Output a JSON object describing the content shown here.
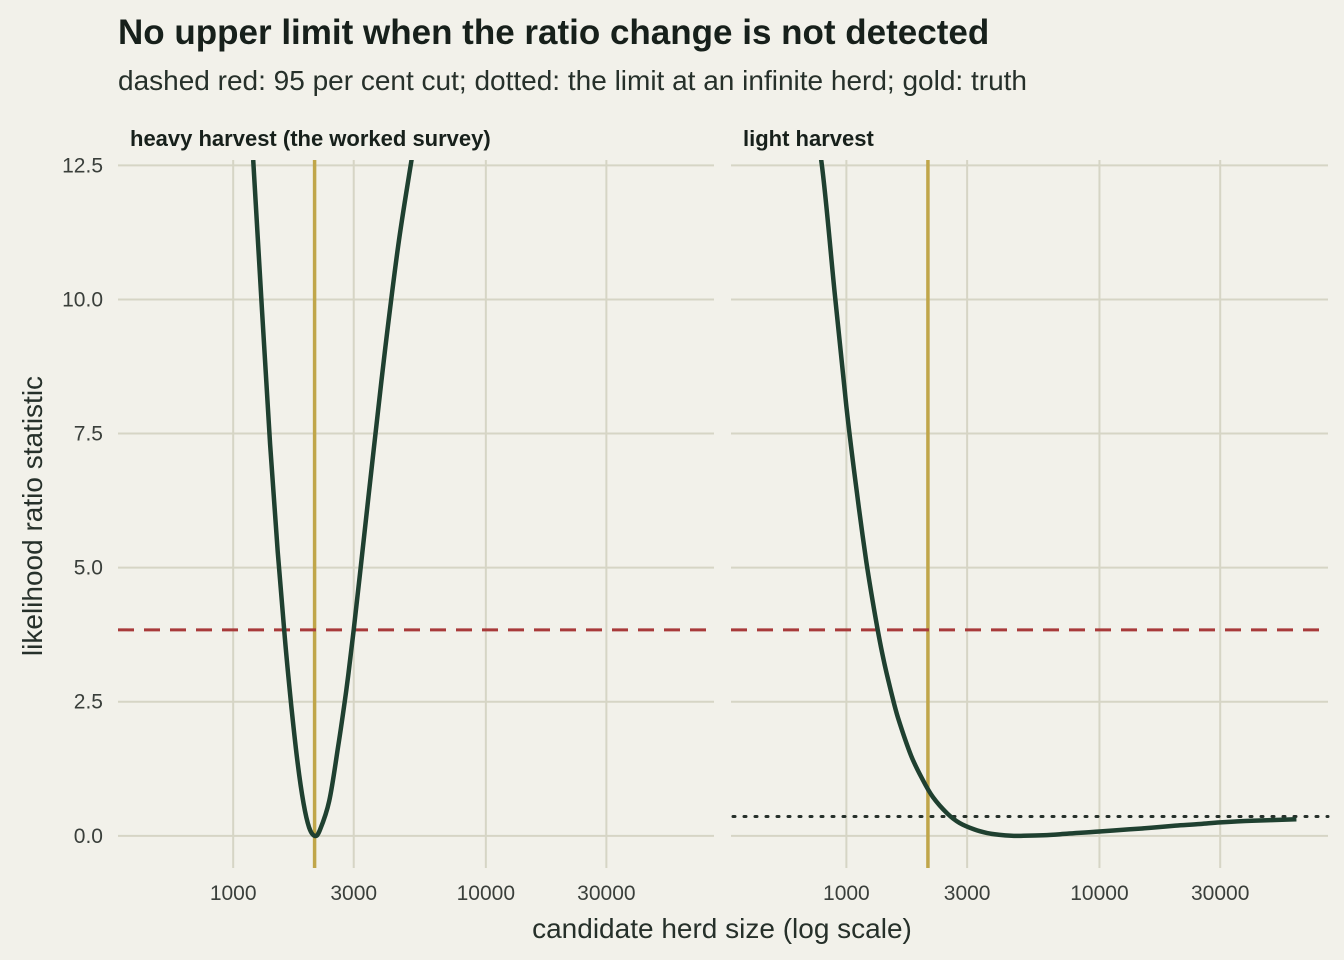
{
  "title": "No upper limit when the ratio change is not detected",
  "subtitle": "dashed red: 95 per cent cut; dotted: the limit at an infinite herd; gold: truth",
  "chart_data": {
    "type": "line",
    "xlabel": "candidate herd size (log scale)",
    "ylabel": "likelihood ratio statistic",
    "x_scale": "log",
    "x_ticks": [
      1000,
      3000,
      10000,
      30000
    ],
    "x_tick_labels": [
      "1000",
      "3000",
      "10000",
      "30000"
    ],
    "y_ticks": [
      0,
      2.5,
      5,
      7.5,
      10,
      12.5
    ],
    "y_tick_labels": [
      "0.0",
      "2.5",
      "5.0",
      "7.5",
      "10.0",
      12.5
    ],
    "xlim": [
      350,
      80000
    ],
    "ylim": [
      -0.6,
      12.6
    ],
    "grid": true,
    "cut_line": {
      "value": 3.84,
      "style": "dashed",
      "color": "#a83a3a"
    },
    "truth": {
      "value": 2100,
      "color": "#c0a64a"
    },
    "curve_color": "#1f4030",
    "panels": [
      {
        "label": "heavy harvest (the worked survey)",
        "x": [
          1200,
          1300,
          1400,
          1500,
          1600,
          1700,
          1800,
          1900,
          2000,
          2100,
          2200,
          2400,
          2600,
          2800,
          3000,
          3300,
          3600,
          4000,
          4500,
          5000,
          5500,
          6000
        ],
        "y": [
          12.6,
          9.8,
          7.3,
          5.3,
          3.7,
          2.4,
          1.35,
          0.6,
          0.15,
          0.0,
          0.1,
          0.65,
          1.65,
          2.7,
          3.84,
          5.6,
          7.2,
          9.1,
          11.0,
          12.4,
          13.6,
          14.6
        ]
      },
      {
        "label": "light harvest",
        "limit": {
          "value": 0.36,
          "style": "dotted",
          "color": "#26302a"
        },
        "x": [
          700,
          800,
          900,
          1000,
          1100,
          1200,
          1300,
          1400,
          1500,
          1600,
          1800,
          2000,
          2200,
          2500,
          2800,
          3200,
          3600,
          4000,
          4500,
          5000,
          6000,
          7000,
          8000,
          10000,
          13000,
          16000,
          20000,
          25000,
          30000,
          40000,
          60000
        ],
        "y": [
          14.2,
          12.5,
          10.1,
          8.0,
          6.4,
          5.1,
          4.1,
          3.3,
          2.7,
          2.2,
          1.5,
          1.05,
          0.72,
          0.42,
          0.24,
          0.12,
          0.05,
          0.02,
          0.0,
          0.0,
          0.01,
          0.03,
          0.05,
          0.08,
          0.12,
          0.15,
          0.19,
          0.22,
          0.25,
          0.28,
          0.31
        ]
      }
    ]
  }
}
